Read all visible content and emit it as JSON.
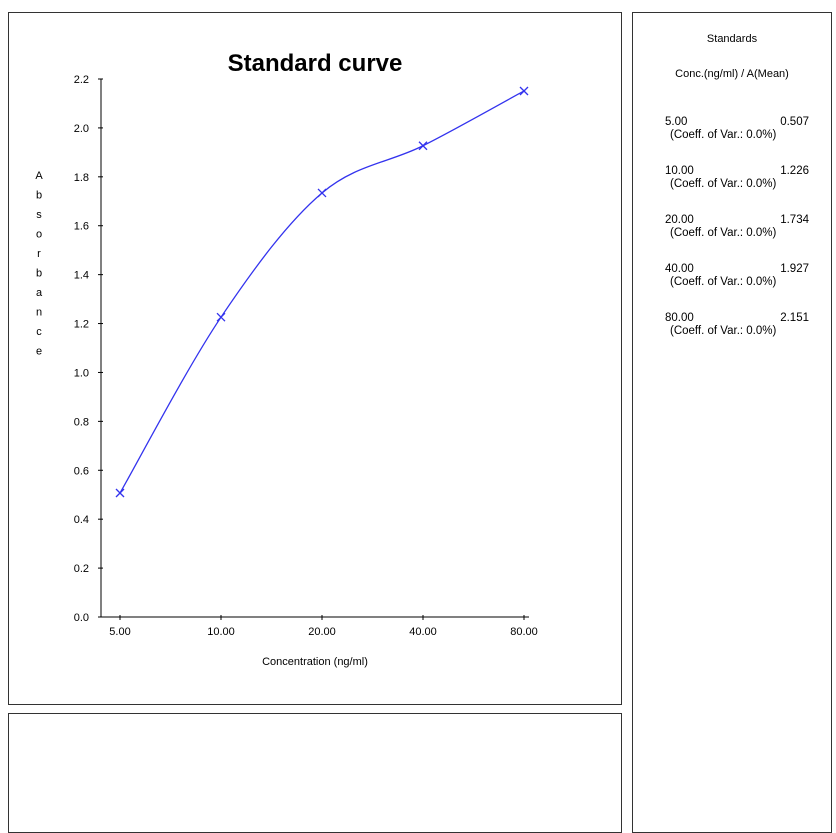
{
  "chart_data": {
    "type": "line",
    "title": "Standard curve",
    "xlabel": "Concentration (ng/ml)",
    "ylabel": "Absorbance",
    "categories": [
      "5.00",
      "10.00",
      "20.00",
      "40.00",
      "80.00"
    ],
    "x": [
      5,
      10,
      20,
      40,
      80
    ],
    "x_scale": "log",
    "y_ticks": [
      "0.0",
      "0.2",
      "0.4",
      "0.6",
      "0.8",
      "1.0",
      "1.2",
      "1.4",
      "1.6",
      "1.8",
      "2.0",
      "2.2"
    ],
    "ylim": [
      0,
      2.2
    ],
    "series": [
      {
        "values": [
          0.507,
          1.226,
          1.734,
          1.927,
          2.151
        ],
        "color": "#3333ee",
        "marker": "x",
        "curve": "smooth"
      }
    ],
    "grid": false,
    "legend": "none"
  },
  "standards": {
    "title": "Standards",
    "header": "Conc.(ng/ml) / A(Mean)",
    "items": [
      {
        "conc": "5.00",
        "mean": "0.507",
        "cv": "(Coeff. of Var.: 0.0%)"
      },
      {
        "conc": "10.00",
        "mean": "1.226",
        "cv": "(Coeff. of Var.: 0.0%)"
      },
      {
        "conc": "20.00",
        "mean": "1.734",
        "cv": "(Coeff. of Var.: 0.0%)"
      },
      {
        "conc": "40.00",
        "mean": "1.927",
        "cv": "(Coeff. of Var.: 0.0%)"
      },
      {
        "conc": "80.00",
        "mean": "2.151",
        "cv": "(Coeff. of Var.: 0.0%)"
      }
    ]
  }
}
